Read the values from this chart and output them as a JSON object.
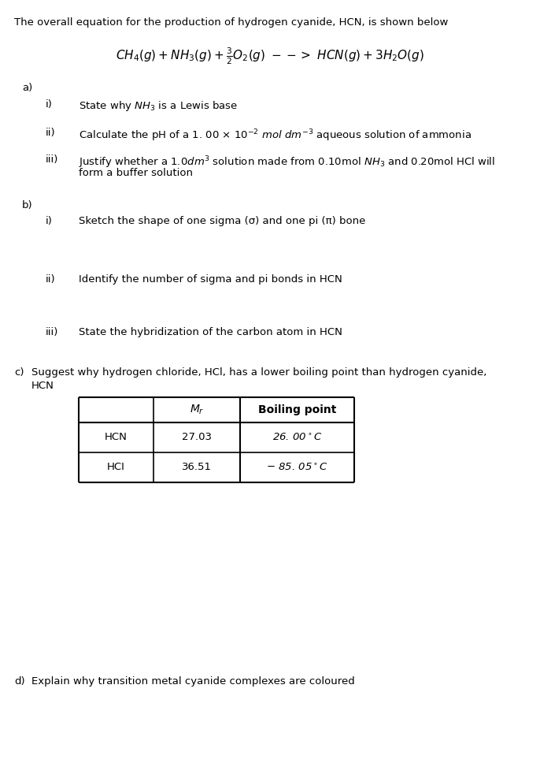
{
  "bg_color": "#ffffff",
  "title_text": "The overall equation for the production of hydrogen cyanide, HCN, is shown below",
  "a_label": "a)",
  "b_label": "b)",
  "c_label": "c)",
  "d_label": "d)",
  "a_i_num": "i)",
  "a_ii_num": "ii)",
  "a_iii_num": "iii)",
  "b_i_num": "i)",
  "b_ii_num": "ii)",
  "b_iii_num": "iii)",
  "a_i_text": "State why NH",
  "a_ii_text_pre": "Calculate the pH of a 1.00 × 10",
  "a_ii_text_post": "mol dm",
  "a_ii_text_end": " aqueous solution of ammonia",
  "a_iii_text_pre": "Justify whether a 1.0dm",
  "a_iii_text_mid": " solution made from 0.10mol NH",
  "a_iii_text_end": " and 0.20mol HCl will",
  "a_iii_line2": "form a buffer solution",
  "b_i_text": "Sketch the shape of one sigma (σ) and one pi (π) bone",
  "b_ii_text": "Identify the number of sigma and pi bonds in HCN",
  "b_iii_text": "State the hybridization of the carbon atom in HCN",
  "c_text_line1": "Suggest why hydrogen chloride, HCl, has a lower boiling point than hydrogen cyanide,",
  "c_text_line2": "HCN",
  "d_text": "Explain why transition metal cyanide complexes are coloured",
  "table_col1_header": "",
  "table_col2_header": "M",
  "table_col3_header": "Boiling point",
  "table_r1c1": "HCN",
  "table_r1c2": "27.03",
  "table_r1c3_pre": "26. 00",
  "table_r1c3_post": "C",
  "table_r2c1": "HCI",
  "table_r2c2": "36.51",
  "table_r2c3_pre": "85. 05",
  "table_r2c3_post": "C"
}
